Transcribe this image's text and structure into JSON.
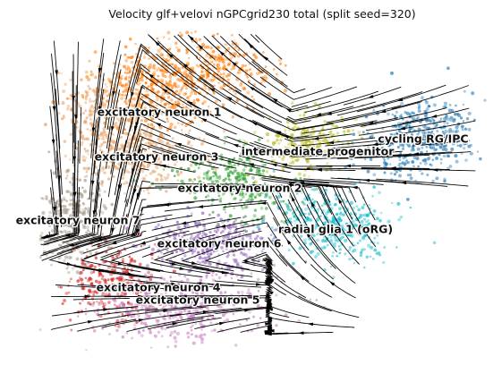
{
  "chart_data": {
    "type": "scatter",
    "title": "Velocity glf+velovi nGPCgrid230 total (split seed=320)",
    "xlabel": "",
    "ylabel": "",
    "axes_visible": false,
    "grid": false,
    "legend": "on data",
    "overlay": "velocity streamlines with arrowheads",
    "series": [
      {
        "name": "excitatory neuron 1",
        "color": "#ff7f0e",
        "label": [
          178,
          126
        ]
      },
      {
        "name": "excitatory neuron 3",
        "color": "#e8a46a",
        "label": [
          175,
          176
        ]
      },
      {
        "name": "intermediate progenitor",
        "color": "#bcbd22",
        "label": [
          355,
          170
        ]
      },
      {
        "name": "cycling RG/IPC",
        "color": "#1f77b4",
        "label": [
          473,
          156
        ]
      },
      {
        "name": "excitatory neuron 2",
        "color": "#2ca02c",
        "label": [
          268,
          211
        ]
      },
      {
        "name": "excitatory neuron 7",
        "color": "#a89a8a",
        "label": [
          87,
          247
        ]
      },
      {
        "name": "radial glia 1 (oRG)",
        "color": "#17becf",
        "label": [
          375,
          257
        ]
      },
      {
        "name": "excitatory neuron 6",
        "color": "#9467bd",
        "label": [
          245,
          273
        ]
      },
      {
        "name": "excitatory neuron 4",
        "color": "#d62728",
        "label": [
          177,
          322
        ]
      },
      {
        "name": "excitatory neuron 5",
        "color": "#c77cc0",
        "label": [
          221,
          336
        ]
      }
    ]
  }
}
